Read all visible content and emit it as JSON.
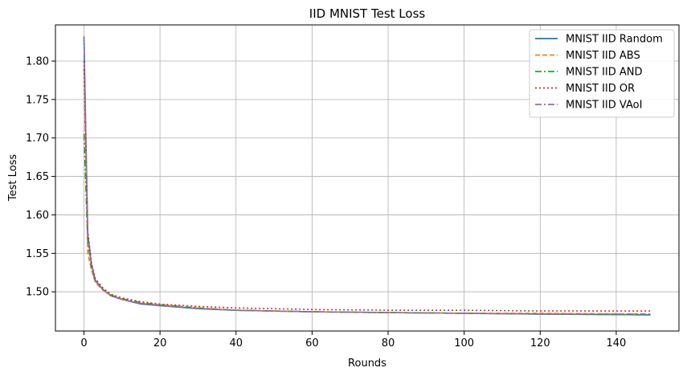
{
  "chart_data": {
    "type": "line",
    "title": "IID MNIST Test Loss",
    "xlabel": "Rounds",
    "ylabel": "Test Loss",
    "xlim": [
      -7.5,
      156.5
    ],
    "ylim": [
      1.449,
      1.847
    ],
    "xticks": [
      0,
      20,
      40,
      60,
      80,
      100,
      120,
      140
    ],
    "yticks": [
      1.5,
      1.55,
      1.6,
      1.65,
      1.7,
      1.75,
      1.8
    ],
    "grid": true,
    "legend_position": "top-right",
    "series": [
      {
        "name": "MNIST IID Random",
        "color": "#1f77b4",
        "dash": "solid",
        "points": [
          [
            0,
            1.832
          ],
          [
            1,
            1.575
          ],
          [
            2,
            1.535
          ],
          [
            3,
            1.515
          ],
          [
            5,
            1.503
          ],
          [
            7,
            1.495
          ],
          [
            10,
            1.49
          ],
          [
            15,
            1.484
          ],
          [
            20,
            1.482
          ],
          [
            30,
            1.478
          ],
          [
            40,
            1.476
          ],
          [
            60,
            1.474
          ],
          [
            80,
            1.473
          ],
          [
            100,
            1.472
          ],
          [
            120,
            1.471
          ],
          [
            149,
            1.47
          ]
        ]
      },
      {
        "name": "MNIST IID ABS",
        "color": "#ff7f0e",
        "dash": "dashed",
        "points": [
          [
            0,
            1.79
          ],
          [
            1,
            1.55
          ],
          [
            2,
            1.528
          ],
          [
            3,
            1.512
          ],
          [
            5,
            1.502
          ],
          [
            7,
            1.495
          ],
          [
            10,
            1.49
          ],
          [
            15,
            1.485
          ],
          [
            20,
            1.483
          ],
          [
            30,
            1.479
          ],
          [
            40,
            1.476
          ],
          [
            60,
            1.474
          ],
          [
            80,
            1.473
          ],
          [
            100,
            1.472
          ],
          [
            120,
            1.472
          ],
          [
            149,
            1.471
          ]
        ]
      },
      {
        "name": "MNIST IID AND",
        "color": "#2ca02c",
        "dash": "dashdot",
        "points": [
          [
            0,
            1.705
          ],
          [
            1,
            1.565
          ],
          [
            2,
            1.53
          ],
          [
            3,
            1.514
          ],
          [
            5,
            1.503
          ],
          [
            7,
            1.496
          ],
          [
            10,
            1.491
          ],
          [
            15,
            1.486
          ],
          [
            20,
            1.483
          ],
          [
            30,
            1.479
          ],
          [
            40,
            1.476
          ],
          [
            60,
            1.474
          ],
          [
            80,
            1.473
          ],
          [
            100,
            1.472
          ],
          [
            120,
            1.471
          ],
          [
            149,
            1.47
          ]
        ]
      },
      {
        "name": "MNIST IID OR",
        "color": "#d62728",
        "dash": "dotted",
        "points": [
          [
            0,
            1.8
          ],
          [
            1,
            1.58
          ],
          [
            2,
            1.537
          ],
          [
            3,
            1.517
          ],
          [
            5,
            1.505
          ],
          [
            7,
            1.497
          ],
          [
            10,
            1.492
          ],
          [
            15,
            1.487
          ],
          [
            20,
            1.484
          ],
          [
            30,
            1.481
          ],
          [
            40,
            1.479
          ],
          [
            60,
            1.477
          ],
          [
            80,
            1.476
          ],
          [
            100,
            1.476
          ],
          [
            120,
            1.475
          ],
          [
            149,
            1.475
          ]
        ]
      },
      {
        "name": "MNIST IID VAoI",
        "color": "#9467bd",
        "dash": "dashdot",
        "points": [
          [
            0,
            1.832
          ],
          [
            1,
            1.57
          ],
          [
            2,
            1.534
          ],
          [
            3,
            1.514
          ],
          [
            5,
            1.503
          ],
          [
            7,
            1.495
          ],
          [
            10,
            1.49
          ],
          [
            15,
            1.485
          ],
          [
            20,
            1.482
          ],
          [
            30,
            1.478
          ],
          [
            40,
            1.476
          ],
          [
            60,
            1.474
          ],
          [
            80,
            1.473
          ],
          [
            100,
            1.472
          ],
          [
            120,
            1.471
          ],
          [
            149,
            1.471
          ]
        ]
      }
    ]
  }
}
